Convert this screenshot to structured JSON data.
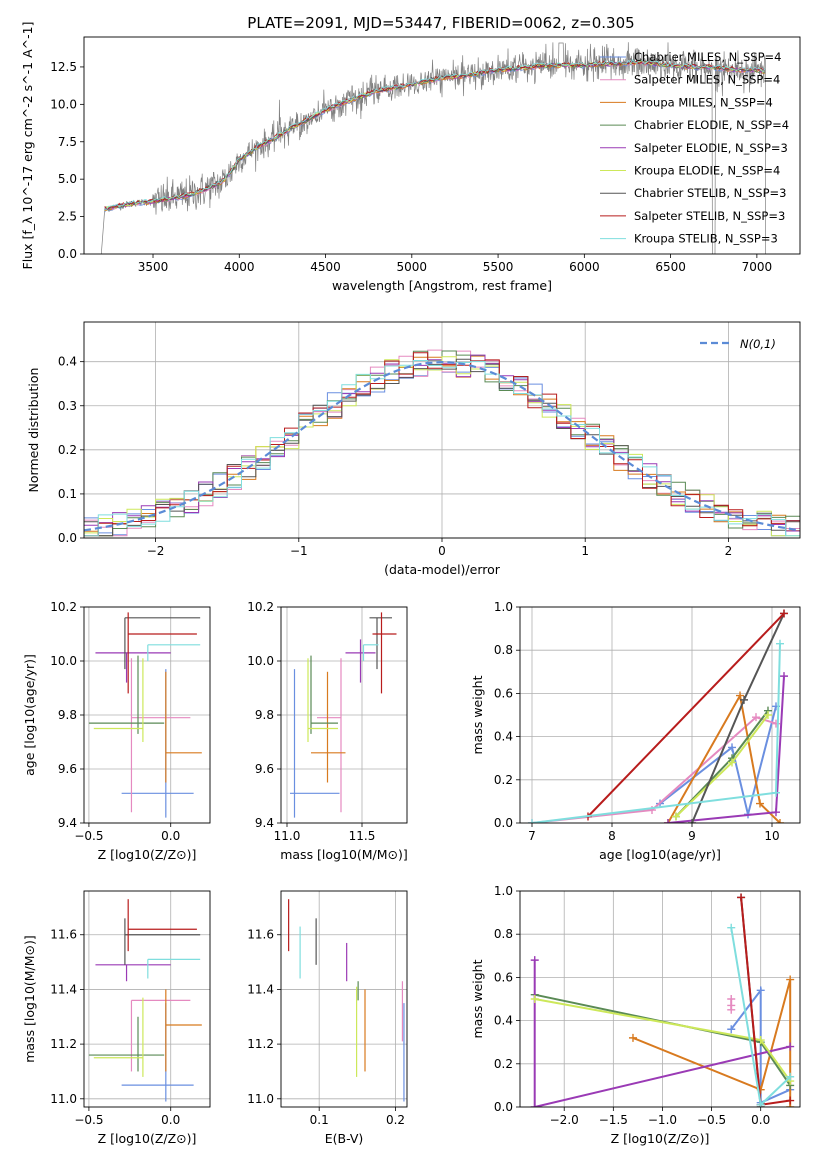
{
  "figure_title": "PLATE=2091, MJD=53447, FIBERID=0062, z=0.305",
  "series_colors": [
    "#6a8fe0",
    "#e58ac0",
    "#d87a1f",
    "#5a8a55",
    "#9a3ab5",
    "#cde85a",
    "#555555",
    "#b81c1c",
    "#7fdede"
  ],
  "chart_data": [
    {
      "id": "spectrum",
      "type": "line",
      "xlabel": "wavelength [Angstrom, rest frame]",
      "ylabel": "Flux [f_λ 10^-17 erg cm^-2 s^-1 A^-1]",
      "xlim": [
        3100,
        7250
      ],
      "ylim": [
        0,
        14.5
      ],
      "xticks": [
        3500,
        4000,
        4500,
        5000,
        5500,
        6000,
        6500,
        7000
      ],
      "yticks": [
        0.0,
        2.5,
        5.0,
        7.5,
        10.0,
        12.5
      ],
      "grid": false,
      "legend": "upper right",
      "data_color": "#808080",
      "continuum_x": [
        3220,
        3300,
        3400,
        3500,
        3600,
        3700,
        3800,
        3900,
        3950,
        4000,
        4100,
        4200,
        4300,
        4400,
        4500,
        4600,
        4700,
        4800,
        4900,
        5000,
        5100,
        5200,
        5300,
        5400,
        5500,
        5600,
        5700,
        5800,
        5900,
        6000,
        6100,
        6200,
        6300,
        6400,
        6500,
        6600,
        6700,
        6800,
        6900,
        7000,
        7050
      ],
      "continuum_y": [
        3.0,
        3.2,
        3.4,
        3.5,
        3.7,
        3.9,
        4.3,
        4.8,
        5.5,
        6.3,
        7.1,
        7.7,
        8.4,
        9.0,
        9.6,
        10.1,
        10.5,
        10.9,
        11.1,
        11.3,
        11.6,
        11.8,
        11.9,
        12.1,
        12.3,
        12.4,
        12.5,
        12.6,
        12.6,
        12.6,
        12.7,
        12.7,
        12.8,
        12.7,
        12.6,
        12.5,
        12.5,
        12.4,
        12.3,
        12.3,
        12.2
      ],
      "legend_entries": [
        {
          "label": "Chabrier MILES, N_SSP=4"
        },
        {
          "label": "Salpeter MILES, N_SSP=4"
        },
        {
          "label": "Kroupa MILES, N_SSP=4"
        },
        {
          "label": "Chabrier ELODIE, N_SSP=4"
        },
        {
          "label": "Salpeter ELODIE, N_SSP=3"
        },
        {
          "label": "Kroupa ELODIE, N_SSP=4"
        },
        {
          "label": "Chabrier STELIB, N_SSP=3"
        },
        {
          "label": "Salpeter STELIB, N_SSP=3"
        },
        {
          "label": "Kroupa STELIB, N_SSP=3"
        }
      ]
    },
    {
      "id": "residuals",
      "type": "histogram",
      "xlabel": "(data-model)/error",
      "ylabel": "Normed distribution",
      "xlim": [
        -2.5,
        2.5
      ],
      "ylim": [
        0,
        0.49
      ],
      "xticks": [
        -2,
        -1,
        0,
        1,
        2
      ],
      "yticks": [
        0.0,
        0.1,
        0.2,
        0.3,
        0.4
      ],
      "grid": true,
      "legend": "upper right",
      "gauss_label": "N(0,1)",
      "gauss_color": "#5b8bd6",
      "bin_width": 0.1
    },
    {
      "id": "age_vs_Z",
      "type": "errorbar",
      "xlabel": "Z [log10(Z/Z⊙)]",
      "ylabel": "age [log10(age/yr)]",
      "xlim": [
        -0.53,
        0.24
      ],
      "ylim": [
        9.4,
        10.2
      ],
      "xticks": [
        -0.5,
        0.0
      ],
      "yticks": [
        9.4,
        9.6,
        9.8,
        10.0,
        10.2
      ],
      "grid": true,
      "points": [
        {
          "x": -0.03,
          "xerr": [
            0.27,
            0.17
          ],
          "y": 9.51,
          "yerr": [
            0.09,
            0.46
          ]
        },
        {
          "x": -0.24,
          "xerr": [
            0.0,
            0.36
          ],
          "y": 9.79,
          "yerr": [
            0.35,
            0.22
          ]
        },
        {
          "x": -0.03,
          "xerr": [
            0.0,
            0.22
          ],
          "y": 9.66,
          "yerr": [
            0.11,
            0.3
          ]
        },
        {
          "x": -0.2,
          "xerr": [
            0.3,
            0.16
          ],
          "y": 9.77,
          "yerr": [
            0.04,
            0.25
          ]
        },
        {
          "x": -0.27,
          "xerr": [
            0.19,
            0.27
          ],
          "y": 10.03,
          "yerr": [
            0.11,
            0.0
          ]
        },
        {
          "x": -0.17,
          "xerr": [
            0.3,
            0.0
          ],
          "y": 9.75,
          "yerr": [
            0.05,
            0.26
          ]
        },
        {
          "x": -0.28,
          "xerr": [
            0.0,
            0.46
          ],
          "y": 10.16,
          "yerr": [
            0.19,
            0.0
          ]
        },
        {
          "x": -0.26,
          "xerr": [
            0.0,
            0.42
          ],
          "y": 10.1,
          "yerr": [
            0.22,
            0.08
          ]
        },
        {
          "x": -0.14,
          "xerr": [
            0.0,
            0.32
          ],
          "y": 10.06,
          "yerr": [
            0.06,
            0.0
          ]
        }
      ]
    },
    {
      "id": "age_vs_mass",
      "type": "errorbar",
      "xlabel": "mass [log10(M/M⊙)]",
      "ylabel": "",
      "xlim": [
        10.96,
        11.8
      ],
      "ylim": [
        9.4,
        10.2
      ],
      "xticks": [
        11.0,
        11.5
      ],
      "yticks": [
        9.4,
        9.6,
        9.8,
        10.0,
        10.2
      ],
      "grid": true,
      "points": [
        {
          "x": 11.05,
          "xerr": [
            0.03,
            0.3
          ],
          "y": 9.51,
          "yerr": [
            0.09,
            0.46
          ]
        },
        {
          "x": 11.36,
          "xerr": [
            0.16,
            0.0
          ],
          "y": 9.79,
          "yerr": [
            0.35,
            0.22
          ]
        },
        {
          "x": 11.27,
          "xerr": [
            0.11,
            0.12
          ],
          "y": 9.66,
          "yerr": [
            0.11,
            0.3
          ]
        },
        {
          "x": 11.16,
          "xerr": [
            0.0,
            0.18
          ],
          "y": 9.77,
          "yerr": [
            0.04,
            0.25
          ]
        },
        {
          "x": 11.49,
          "xerr": [
            0.1,
            0.1
          ],
          "y": 10.03,
          "yerr": [
            0.11,
            0.05
          ]
        },
        {
          "x": 11.14,
          "xerr": [
            0.0,
            0.2
          ],
          "y": 9.75,
          "yerr": [
            0.05,
            0.26
          ]
        },
        {
          "x": 11.6,
          "xerr": [
            0.05,
            0.1
          ],
          "y": 10.16,
          "yerr": [
            0.19,
            0.0
          ]
        },
        {
          "x": 11.63,
          "xerr": [
            0.06,
            0.1
          ],
          "y": 10.1,
          "yerr": [
            0.22,
            0.08
          ]
        },
        {
          "x": 11.51,
          "xerr": [
            0.0,
            0.1
          ],
          "y": 10.06,
          "yerr": [
            0.06,
            0.0
          ]
        }
      ]
    },
    {
      "id": "weight_vs_age",
      "type": "line",
      "xlabel": "age [log10(age/yr)]",
      "ylabel": "mass weight",
      "xlim": [
        6.85,
        10.35
      ],
      "ylim": [
        0,
        1.0
      ],
      "xticks": [
        7,
        8,
        9,
        10
      ],
      "yticks": [
        0.0,
        0.2,
        0.4,
        0.6,
        0.8,
        1.0
      ],
      "grid": true,
      "series": [
        {
          "x": [
            8.6,
            9.5,
            9.7,
            10.05
          ],
          "y": [
            0.09,
            0.35,
            0.04,
            0.54
          ]
        },
        {
          "x": [
            7.0,
            8.5,
            9.8,
            10.05
          ],
          "y": [
            0.0,
            0.06,
            0.49,
            0.46
          ]
        },
        {
          "x": [
            8.7,
            9.6,
            9.85,
            10.1
          ],
          "y": [
            0.0,
            0.59,
            0.09,
            0.0
          ]
        },
        {
          "x": [
            8.8,
            9.5,
            9.95
          ],
          "y": [
            0.03,
            0.3,
            0.52
          ]
        },
        {
          "x": [
            8.7,
            10.05,
            10.15
          ],
          "y": [
            0.0,
            0.05,
            0.68
          ]
        },
        {
          "x": [
            8.8,
            9.5,
            9.95
          ],
          "y": [
            0.03,
            0.28,
            0.5
          ]
        },
        {
          "x": [
            9.0,
            9.65,
            10.15
          ],
          "y": [
            0.0,
            0.57,
            0.97
          ]
        },
        {
          "x": [
            7.7,
            10.15
          ],
          "y": [
            0.03,
            0.97
          ]
        },
        {
          "x": [
            7.0,
            10.05,
            10.1
          ],
          "y": [
            0.0,
            0.14,
            0.83
          ]
        }
      ]
    },
    {
      "id": "mass_vs_Z",
      "type": "errorbar",
      "xlabel": "Z [log10(Z/Z⊙)]",
      "ylabel": "mass [log10(M/M⊙)]",
      "xlim": [
        -0.53,
        0.24
      ],
      "ylim": [
        10.97,
        11.76
      ],
      "xticks": [
        -0.5,
        0.0
      ],
      "yticks": [
        11.0,
        11.2,
        11.4,
        11.6
      ],
      "grid": true,
      "points": [
        {
          "x": -0.03,
          "xerr": [
            0.27,
            0.17
          ],
          "y": 11.05,
          "yerr": [
            0.06,
            0.3
          ]
        },
        {
          "x": -0.24,
          "xerr": [
            0.0,
            0.36
          ],
          "y": 11.36,
          "yerr": [
            0.26,
            0.0
          ]
        },
        {
          "x": -0.03,
          "xerr": [
            0.0,
            0.22
          ],
          "y": 11.27,
          "yerr": [
            0.17,
            0.13
          ]
        },
        {
          "x": -0.2,
          "xerr": [
            0.3,
            0.16
          ],
          "y": 11.16,
          "yerr": [
            0.06,
            0.14
          ]
        },
        {
          "x": -0.27,
          "xerr": [
            0.19,
            0.27
          ],
          "y": 11.49,
          "yerr": [
            0.06,
            0.0
          ]
        },
        {
          "x": -0.17,
          "xerr": [
            0.3,
            0.0
          ],
          "y": 11.15,
          "yerr": [
            0.07,
            0.22
          ]
        },
        {
          "x": -0.28,
          "xerr": [
            0.0,
            0.46
          ],
          "y": 11.6,
          "yerr": [
            0.11,
            0.06
          ]
        },
        {
          "x": -0.26,
          "xerr": [
            0.0,
            0.42
          ],
          "y": 11.62,
          "yerr": [
            0.08,
            0.11
          ]
        },
        {
          "x": -0.14,
          "xerr": [
            0.0,
            0.32
          ],
          "y": 11.51,
          "yerr": [
            0.07,
            0.0
          ]
        }
      ]
    },
    {
      "id": "mass_vs_ebv",
      "type": "errorbar",
      "xlabel": "E(B-V)",
      "ylabel": "",
      "xlim": [
        0.05,
        0.215
      ],
      "ylim": [
        10.97,
        11.76
      ],
      "xticks": [
        0.1,
        0.2
      ],
      "yticks": [
        11.0,
        11.2,
        11.4,
        11.6
      ],
      "grid": true,
      "points": [
        {
          "x": 0.211,
          "xerr": [
            0,
            0
          ],
          "y": 11.05,
          "yerr": [
            0.06,
            0.3
          ]
        },
        {
          "x": 0.209,
          "xerr": [
            0,
            0
          ],
          "y": 11.36,
          "yerr": [
            0.15,
            0.07
          ]
        },
        {
          "x": 0.16,
          "xerr": [
            0,
            0
          ],
          "y": 11.27,
          "yerr": [
            0.17,
            0.13
          ]
        },
        {
          "x": 0.151,
          "xerr": [
            0,
            0
          ],
          "y": 11.36,
          "yerr": [
            0.0,
            0.07
          ]
        },
        {
          "x": 0.136,
          "xerr": [
            0,
            0
          ],
          "y": 11.49,
          "yerr": [
            0.06,
            0.08
          ]
        },
        {
          "x": 0.149,
          "xerr": [
            0,
            0
          ],
          "y": 11.15,
          "yerr": [
            0.07,
            0.26
          ]
        },
        {
          "x": 0.096,
          "xerr": [
            0,
            0
          ],
          "y": 11.6,
          "yerr": [
            0.11,
            0.06
          ]
        },
        {
          "x": 0.06,
          "xerr": [
            0,
            0
          ],
          "y": 11.62,
          "yerr": [
            0.08,
            0.11
          ]
        },
        {
          "x": 0.075,
          "xerr": [
            0,
            0
          ],
          "y": 11.51,
          "yerr": [
            0.07,
            0.12
          ]
        }
      ]
    },
    {
      "id": "weight_vs_Z",
      "type": "line",
      "xlabel": "Z [log10(Z/Z⊙)]",
      "ylabel": "mass weight",
      "xlim": [
        -2.45,
        0.4
      ],
      "ylim": [
        0,
        1.0
      ],
      "xticks": [
        -2.0,
        -1.5,
        -1.0,
        -0.5,
        0.0
      ],
      "yticks": [
        0.0,
        0.2,
        0.4,
        0.6,
        0.8,
        1.0
      ],
      "grid": true,
      "series": [
        {
          "x": [
            -0.3,
            0.0,
            0.0,
            0.3
          ],
          "y": [
            0.36,
            0.54,
            0.02,
            0.08
          ]
        },
        {
          "x": [
            -0.3,
            -0.3,
            -0.3
          ],
          "y": [
            0.45,
            0.5,
            0.47
          ]
        },
        {
          "x": [
            -1.3,
            0.0,
            0.3,
            0.3
          ],
          "y": [
            0.32,
            0.08,
            0.59,
            0.0
          ]
        },
        {
          "x": [
            -2.3,
            0.0,
            0.3
          ],
          "y": [
            0.52,
            0.3,
            0.1
          ]
        },
        {
          "x": [
            -2.3,
            -2.3,
            0.3
          ],
          "y": [
            0.68,
            0.0,
            0.28
          ]
        },
        {
          "x": [
            -2.3,
            0.0,
            0.3
          ],
          "y": [
            0.5,
            0.31,
            0.12
          ]
        },
        {
          "x": [
            -0.2,
            0.0
          ],
          "y": [
            0.97,
            0.0
          ]
        },
        {
          "x": [
            -0.2,
            0.0,
            0.3
          ],
          "y": [
            0.97,
            0.01,
            0.03
          ]
        },
        {
          "x": [
            -0.3,
            0.0,
            0.3
          ],
          "y": [
            0.83,
            0.01,
            0.14
          ]
        }
      ]
    }
  ]
}
